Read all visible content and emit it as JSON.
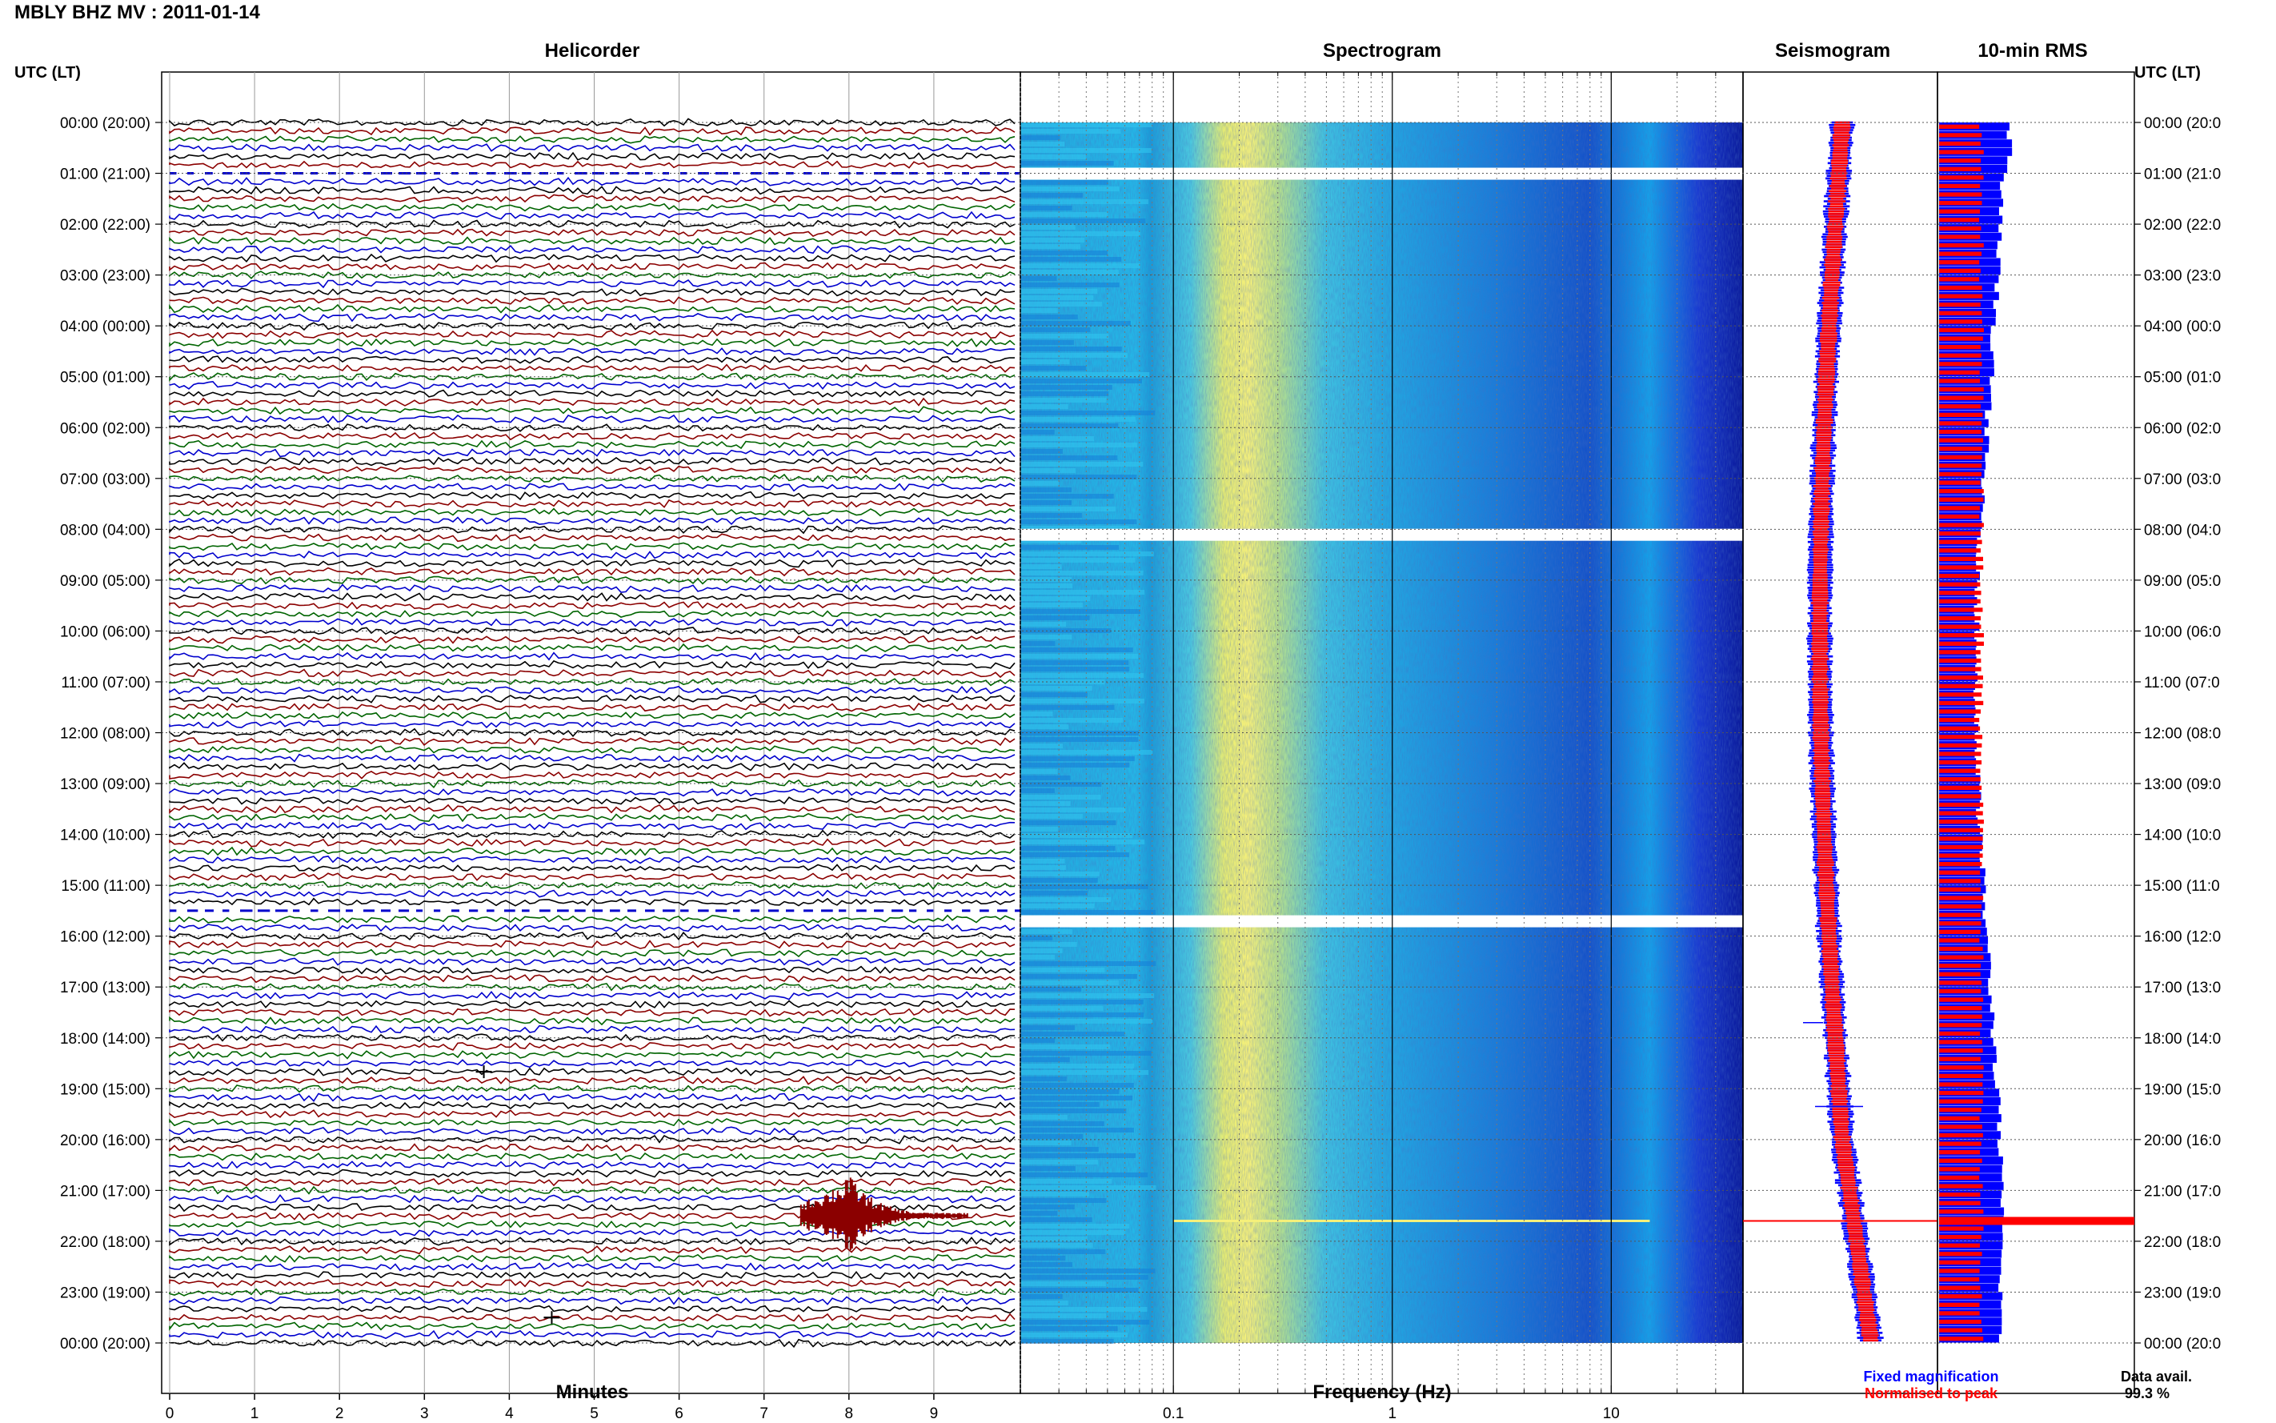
{
  "title": "MBLY BHZ MV : 2011-01-14",
  "panels": {
    "helicorder": "Helicorder",
    "spectrogram": "Spectrogram",
    "seismogram": "Seismogram",
    "rms": "10-min RMS"
  },
  "axis_header_left": "UTC (LT)",
  "axis_header_right": "UTC (LT)",
  "time_labels": [
    "00:00 (20:00)",
    "01:00 (21:00)",
    "02:00 (22:00)",
    "03:00 (23:00)",
    "04:00 (00:00)",
    "05:00 (01:00)",
    "06:00 (02:00)",
    "07:00 (03:00)",
    "08:00 (04:00)",
    "09:00 (05:00)",
    "10:00 (06:00)",
    "11:00 (07:00)",
    "12:00 (08:00)",
    "13:00 (09:00)",
    "14:00 (10:00)",
    "15:00 (11:00)",
    "16:00 (12:00)",
    "17:00 (13:00)",
    "18:00 (14:00)",
    "19:00 (15:00)",
    "20:00 (16:00)",
    "21:00 (17:00)",
    "22:00 (18:00)",
    "23:00 (19:00)",
    "00:00 (20:00)"
  ],
  "time_labels_right": [
    "00:00 (20:0",
    "01:00 (21:0",
    "02:00 (22:0",
    "03:00 (23:0",
    "04:00 (00:0",
    "05:00 (01:0",
    "06:00 (02:0",
    "07:00 (03:0",
    "08:00 (04:0",
    "09:00 (05:0",
    "10:00 (06:0",
    "11:00 (07:0",
    "12:00 (08:0",
    "13:00 (09:0",
    "14:00 (10:0",
    "15:00 (11:0",
    "16:00 (12:0",
    "17:00 (13:0",
    "18:00 (14:0",
    "19:00 (15:0",
    "20:00 (16:0",
    "21:00 (17:0",
    "22:00 (18:0",
    "23:00 (19:0",
    "00:00 (20:0"
  ],
  "helicorder_xlabel": "Minutes",
  "helicorder_ticks": [
    "0",
    "1",
    "2",
    "3",
    "4",
    "5",
    "6",
    "7",
    "8",
    "9"
  ],
  "spectrogram_xlabel": "Frequency (Hz)",
  "spectrogram_ticks": [
    "0.1",
    "1",
    "10"
  ],
  "legend": {
    "fixed": "Fixed magnification",
    "normalised": "Normalised to peak"
  },
  "data_availability": {
    "label": "Data avail.",
    "value": "99.3 %"
  },
  "colors": {
    "trace_colors": [
      "#000000",
      "#8b0000",
      "#006400",
      "#0000cd"
    ],
    "fixed": "#0000ff",
    "normalised": "#ff0000",
    "spectrogram_low": "#0a1a9a",
    "spectrogram_mid": "#1cb8ee",
    "spectrogram_peak": "#f5f07a"
  },
  "chart_data": [
    {
      "type": "line",
      "panel": "Helicorder",
      "xlabel": "Minutes",
      "xlim": [
        0,
        10
      ],
      "ylim_hours": [
        0,
        24
      ],
      "lines_per_hour": 6,
      "gaps_hours": [
        1.0,
        15.5
      ],
      "events": [
        {
          "time_utc": "21:30",
          "minute": 8.0,
          "amplitude": "large",
          "color": "#8b0000"
        },
        {
          "time_utc": "18:40",
          "minute": 3.7,
          "amplitude": "small"
        },
        {
          "time_utc": "23:30",
          "minute": 4.5,
          "amplitude": "small"
        }
      ]
    },
    {
      "type": "heatmap",
      "panel": "Spectrogram",
      "xlabel": "Frequency (Hz)",
      "x_scale": "log",
      "xlim": [
        0.02,
        40
      ],
      "peak_band_hz": [
        0.17,
        0.3
      ],
      "gaps_hours": [
        1.0,
        8.1,
        15.7
      ],
      "event_line_hours": 21.6
    },
    {
      "type": "line",
      "panel": "Seismogram",
      "series": [
        {
          "name": "Fixed magnification",
          "color": "#0000ff"
        },
        {
          "name": "Normalised to peak",
          "color": "#ff0000"
        }
      ],
      "event_hours": 21.6
    },
    {
      "type": "bar",
      "panel": "10-min RMS",
      "bins_per_hour": 6,
      "series": [
        {
          "name": "Fixed magnification",
          "color": "#0000ff"
        },
        {
          "name": "Normalised to peak",
          "color": "#ff0000"
        }
      ],
      "peak_hours": 21.6
    }
  ]
}
